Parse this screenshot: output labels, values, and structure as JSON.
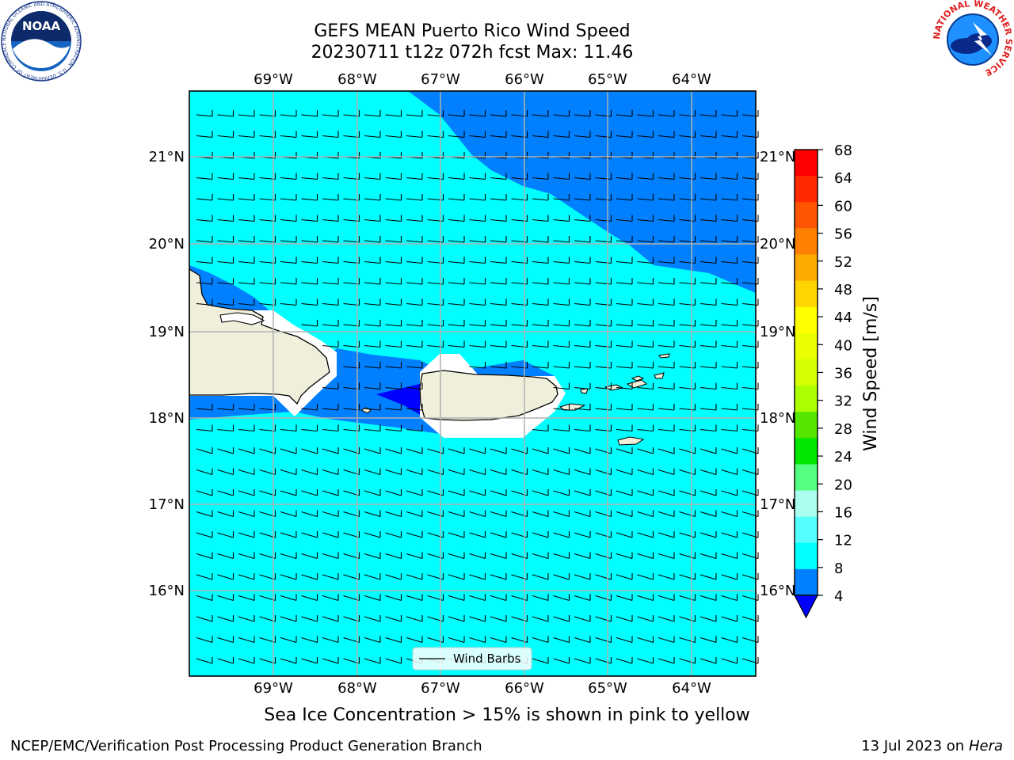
{
  "title_line1": "GEFS MEAN Puerto Rico Wind Speed",
  "title_line2": "20230711 t12z 072h fcst   Max: 11.46",
  "lon_labels": [
    "69°W",
    "68°W",
    "67°W",
    "66°W",
    "65°W",
    "64°W"
  ],
  "lat_labels": [
    "21°N",
    "20°N",
    "19°N",
    "18°N",
    "17°N",
    "16°N"
  ],
  "legend_label": "Wind Barbs",
  "colorbar": {
    "label": "Wind Speed [m/s]",
    "ticks": [
      "68",
      "64",
      "60",
      "56",
      "52",
      "48",
      "44",
      "40",
      "36",
      "32",
      "28",
      "24",
      "20",
      "16",
      "12",
      "8",
      "4"
    ],
    "colors": [
      "#ff0000",
      "#ff2a00",
      "#ff5500",
      "#ff8000",
      "#ffaa00",
      "#ffd400",
      "#ffff00",
      "#eaff00",
      "#d4ff00",
      "#aaff00",
      "#55e600",
      "#00e600",
      "#55ff80",
      "#aaffee",
      "#55ffff",
      "#00ffff",
      "#0080ff"
    ],
    "extend_color": "#0000ff"
  },
  "sea_ice_note": "Sea Ice Concentration > 15% is shown in pink to yellow",
  "footer_left": "NCEP/EMC/Verification Post Processing Product Generation Branch",
  "footer_right_date": "13 Jul 2023 on",
  "footer_right_host": "Hera",
  "noaa_logo_text": "NOAA",
  "noaa_ring_text": "NATIONAL OCEANIC AND ATMOSPHERIC ADMINISTRATION · U.S. DEPARTMENT OF COMMERCE ·",
  "nws_ring_text": "NATIONAL WEATHER SERVICE",
  "colors": {
    "cyan": "#00ffff",
    "blue": "#0080ff",
    "deepblue": "#0000ff",
    "land": "#efefdc",
    "grid": "#b0b0b0"
  }
}
